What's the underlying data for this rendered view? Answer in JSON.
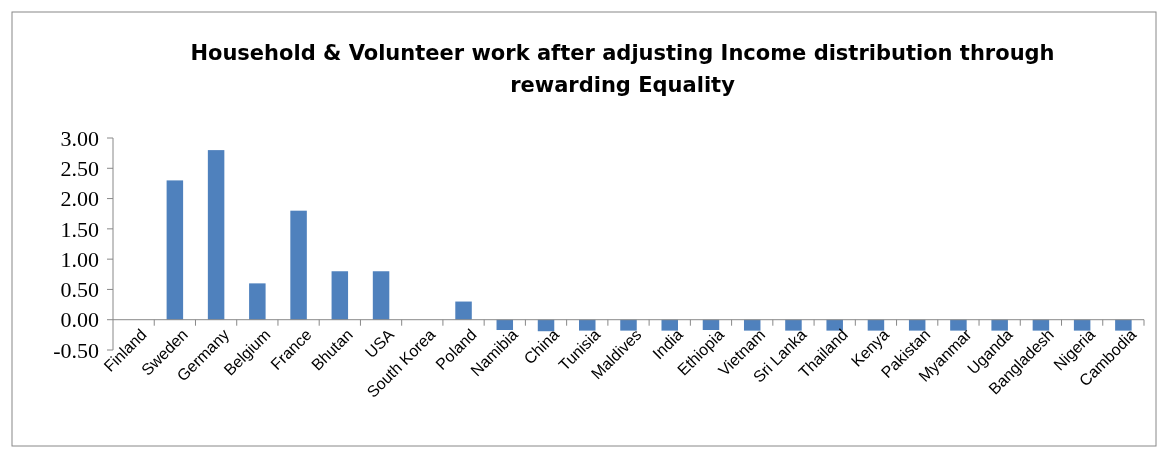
{
  "chart_data": {
    "type": "bar",
    "title": "Household & Volunteer work after adjusting Income distribution through rewarding Equality",
    "categories": [
      "Finland",
      "Sweden",
      "Germany",
      "Belgium",
      "France",
      "Bhutan",
      "USA",
      "South Korea",
      "Poland",
      "Namibia",
      "China",
      "Tunisia",
      "Maldives",
      "India",
      "Ethiopia",
      "Vietnam",
      "Sri Lanka",
      "Thailand",
      "Kenya",
      "Pakistan",
      "Myanmar",
      "Uganda",
      "Bangladesh",
      "Nigeria",
      "Cambodia"
    ],
    "values": [
      0,
      2.3,
      2.8,
      0.6,
      1.8,
      0.8,
      0.8,
      0,
      0.3,
      -0.17,
      -0.19,
      -0.18,
      -0.18,
      -0.18,
      -0.17,
      -0.18,
      -0.18,
      -0.18,
      -0.18,
      -0.18,
      -0.18,
      -0.18,
      -0.18,
      -0.18,
      -0.18
    ],
    "color": "#4f81bd",
    "ylim": [
      -0.5,
      3
    ],
    "yticks": [
      {
        "value": -0.5,
        "label": "-0.50"
      },
      {
        "value": 0,
        "label": "0.00"
      },
      {
        "value": 0.5,
        "label": "0.50"
      },
      {
        "value": 1,
        "label": "1.00"
      },
      {
        "value": 1.5,
        "label": "1.50"
      },
      {
        "value": 2,
        "label": "2.00"
      },
      {
        "value": 2.5,
        "label": "2.50"
      },
      {
        "value": 3,
        "label": "3.00"
      }
    ]
  }
}
